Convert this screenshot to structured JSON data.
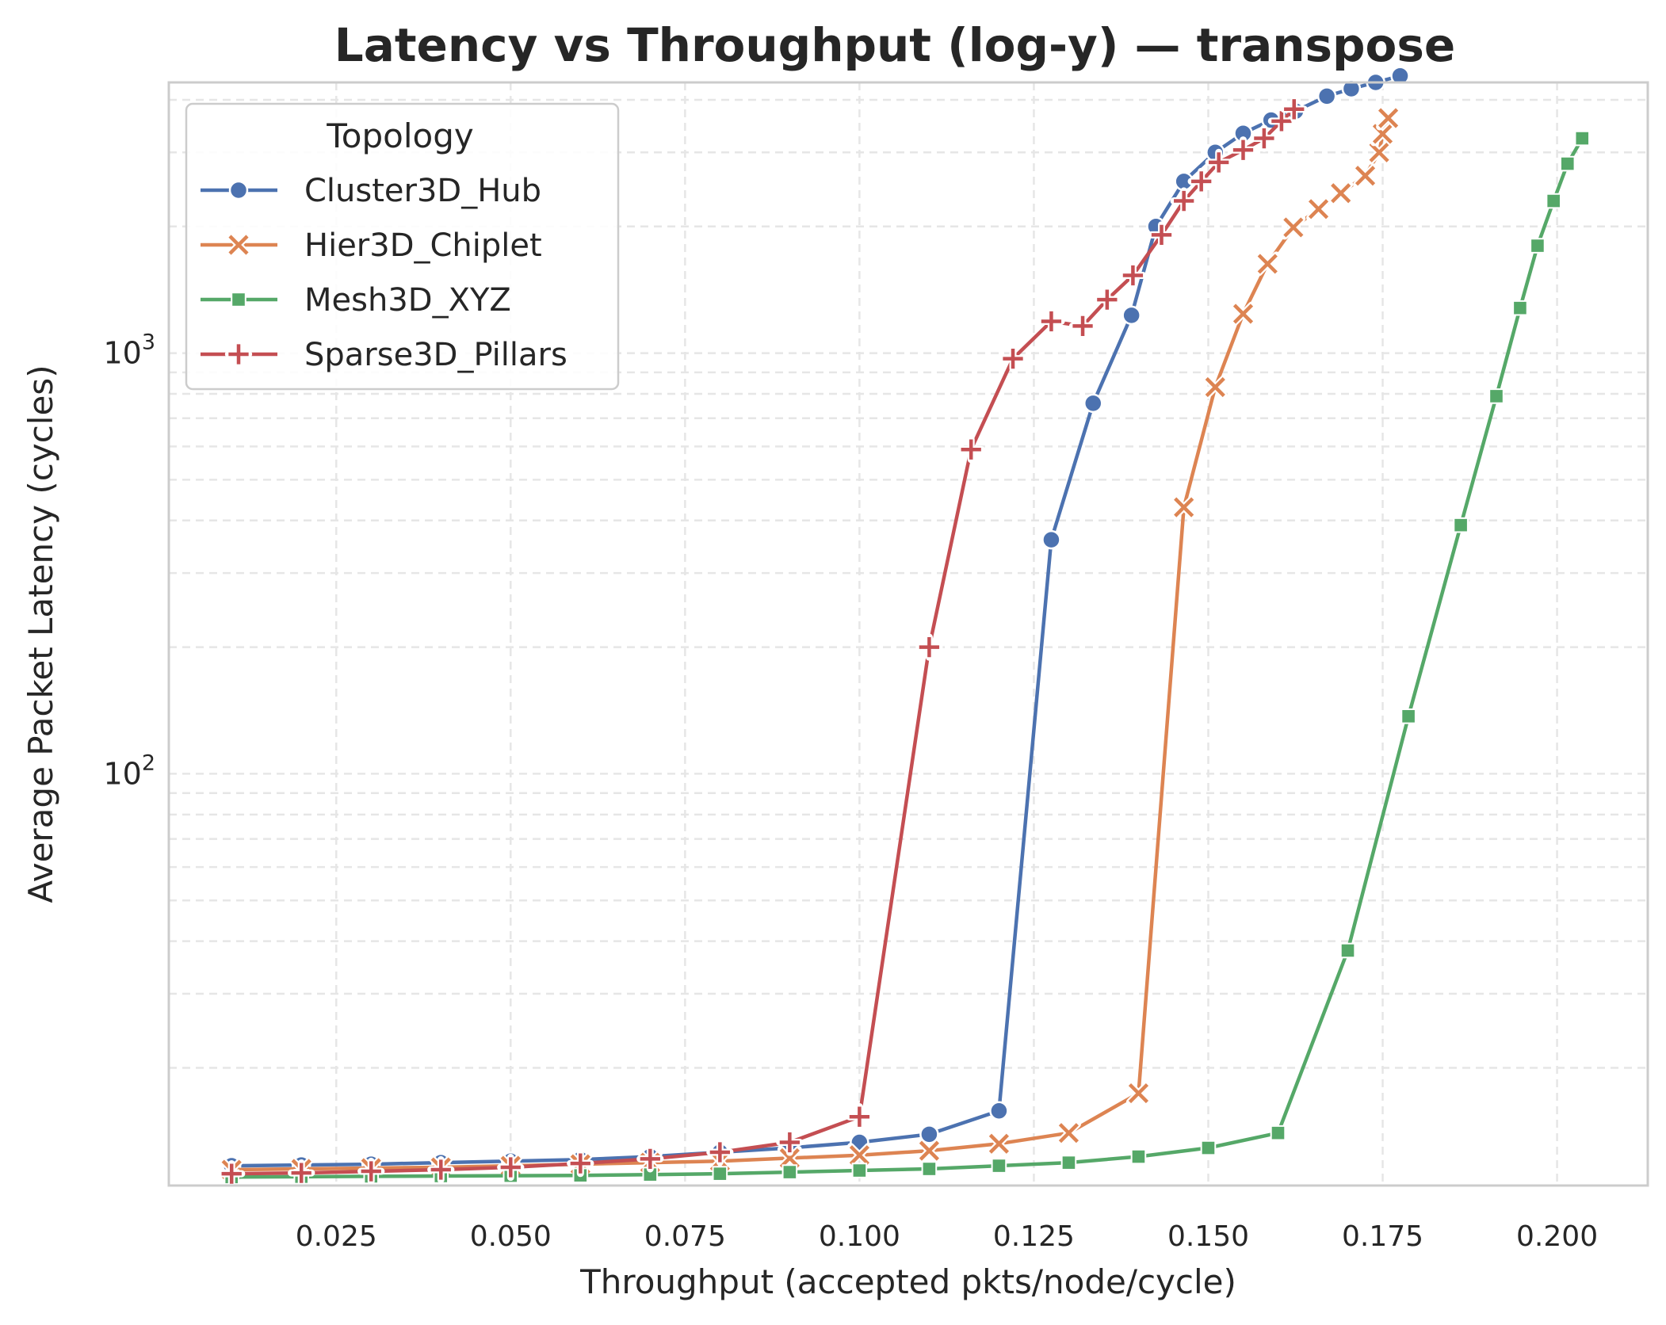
{
  "chart_data": {
    "type": "line",
    "title": "Latency vs Throughput (log-y) — transpose",
    "xlabel": "Throughput (accepted pkts/node/cycle)",
    "ylabel": "Average Packet Latency (cycles)",
    "xscale": "linear",
    "yscale": "log",
    "xlim": [
      0.001,
      0.213
    ],
    "ylim": [
      10.5,
      4400
    ],
    "grid": true,
    "legend": {
      "title": "Topology",
      "position": "top-left"
    },
    "x_ticks": [
      "0.025",
      "0.050",
      "0.075",
      "0.100",
      "0.125",
      "0.150",
      "0.175",
      "0.200"
    ],
    "x_tick_values": [
      0.025,
      0.05,
      0.075,
      0.1,
      0.125,
      0.15,
      0.175,
      0.2
    ],
    "y_ticks": [
      {
        "value": 100,
        "base": "10",
        "exp": "2"
      },
      {
        "value": 1000,
        "base": "10",
        "exp": "3"
      }
    ],
    "series": [
      {
        "name": "Cluster3D_Hub",
        "color": "#4c72b0",
        "marker": "circle",
        "points": [
          [
            0.01,
            11.7
          ],
          [
            0.02,
            11.75
          ],
          [
            0.03,
            11.8
          ],
          [
            0.04,
            11.9
          ],
          [
            0.05,
            12.0
          ],
          [
            0.06,
            12.1
          ],
          [
            0.07,
            12.3
          ],
          [
            0.08,
            12.6
          ],
          [
            0.09,
            12.9
          ],
          [
            0.1,
            13.3
          ],
          [
            0.11,
            13.9
          ],
          [
            0.12,
            15.8
          ],
          [
            0.1275,
            360
          ],
          [
            0.1335,
            760
          ],
          [
            0.139,
            1230
          ],
          [
            0.1425,
            2000
          ],
          [
            0.1465,
            2560
          ],
          [
            0.151,
            3000
          ],
          [
            0.155,
            3330
          ],
          [
            0.159,
            3580
          ],
          [
            0.1625,
            3760
          ],
          [
            0.167,
            4080
          ],
          [
            0.1705,
            4250
          ],
          [
            0.174,
            4400
          ],
          [
            0.1775,
            4560
          ]
        ]
      },
      {
        "name": "Hier3D_Chiplet",
        "color": "#dd8452",
        "marker": "x",
        "points": [
          [
            0.01,
            11.45
          ],
          [
            0.02,
            11.5
          ],
          [
            0.03,
            11.55
          ],
          [
            0.04,
            11.6
          ],
          [
            0.05,
            11.7
          ],
          [
            0.06,
            11.8
          ],
          [
            0.07,
            11.9
          ],
          [
            0.08,
            12.0
          ],
          [
            0.09,
            12.2
          ],
          [
            0.1,
            12.4
          ],
          [
            0.11,
            12.7
          ],
          [
            0.12,
            13.2
          ],
          [
            0.13,
            14.0
          ],
          [
            0.14,
            17.4
          ],
          [
            0.1465,
            430
          ],
          [
            0.151,
            830
          ],
          [
            0.155,
            1240
          ],
          [
            0.1585,
            1630
          ],
          [
            0.1622,
            1990
          ],
          [
            0.1658,
            2200
          ],
          [
            0.169,
            2400
          ],
          [
            0.1725,
            2640
          ],
          [
            0.1745,
            3000
          ],
          [
            0.175,
            3320
          ],
          [
            0.1758,
            3620
          ]
        ]
      },
      {
        "name": "Mesh3D_XYZ",
        "color": "#55a868",
        "marker": "square",
        "points": [
          [
            0.01,
            11.0
          ],
          [
            0.02,
            11.02
          ],
          [
            0.03,
            11.04
          ],
          [
            0.04,
            11.06
          ],
          [
            0.05,
            11.08
          ],
          [
            0.06,
            11.1
          ],
          [
            0.07,
            11.15
          ],
          [
            0.08,
            11.2
          ],
          [
            0.09,
            11.3
          ],
          [
            0.1,
            11.4
          ],
          [
            0.11,
            11.5
          ],
          [
            0.12,
            11.7
          ],
          [
            0.13,
            11.9
          ],
          [
            0.14,
            12.3
          ],
          [
            0.15,
            12.9
          ],
          [
            0.16,
            14.0
          ],
          [
            0.17,
            38
          ],
          [
            0.1787,
            137
          ],
          [
            0.1862,
            390
          ],
          [
            0.1913,
            790
          ],
          [
            0.1947,
            1280
          ],
          [
            0.1972,
            1800
          ],
          [
            0.1995,
            2300
          ],
          [
            0.2015,
            2820
          ],
          [
            0.2036,
            3240
          ]
        ]
      },
      {
        "name": "Sparse3D_Pillars",
        "color": "#c44e52",
        "marker": "plus",
        "points": [
          [
            0.01,
            11.2
          ],
          [
            0.02,
            11.25
          ],
          [
            0.03,
            11.35
          ],
          [
            0.04,
            11.45
          ],
          [
            0.05,
            11.6
          ],
          [
            0.06,
            11.85
          ],
          [
            0.07,
            12.15
          ],
          [
            0.08,
            12.6
          ],
          [
            0.09,
            13.3
          ],
          [
            0.1,
            15.3
          ],
          [
            0.11,
            200
          ],
          [
            0.116,
            590
          ],
          [
            0.122,
            970
          ],
          [
            0.1275,
            1190
          ],
          [
            0.132,
            1160
          ],
          [
            0.1355,
            1340
          ],
          [
            0.1392,
            1530
          ],
          [
            0.1433,
            1910
          ],
          [
            0.1465,
            2300
          ],
          [
            0.149,
            2560
          ],
          [
            0.1515,
            2840
          ],
          [
            0.155,
            3040
          ],
          [
            0.158,
            3240
          ],
          [
            0.1605,
            3560
          ],
          [
            0.1623,
            3800
          ]
        ]
      }
    ]
  }
}
